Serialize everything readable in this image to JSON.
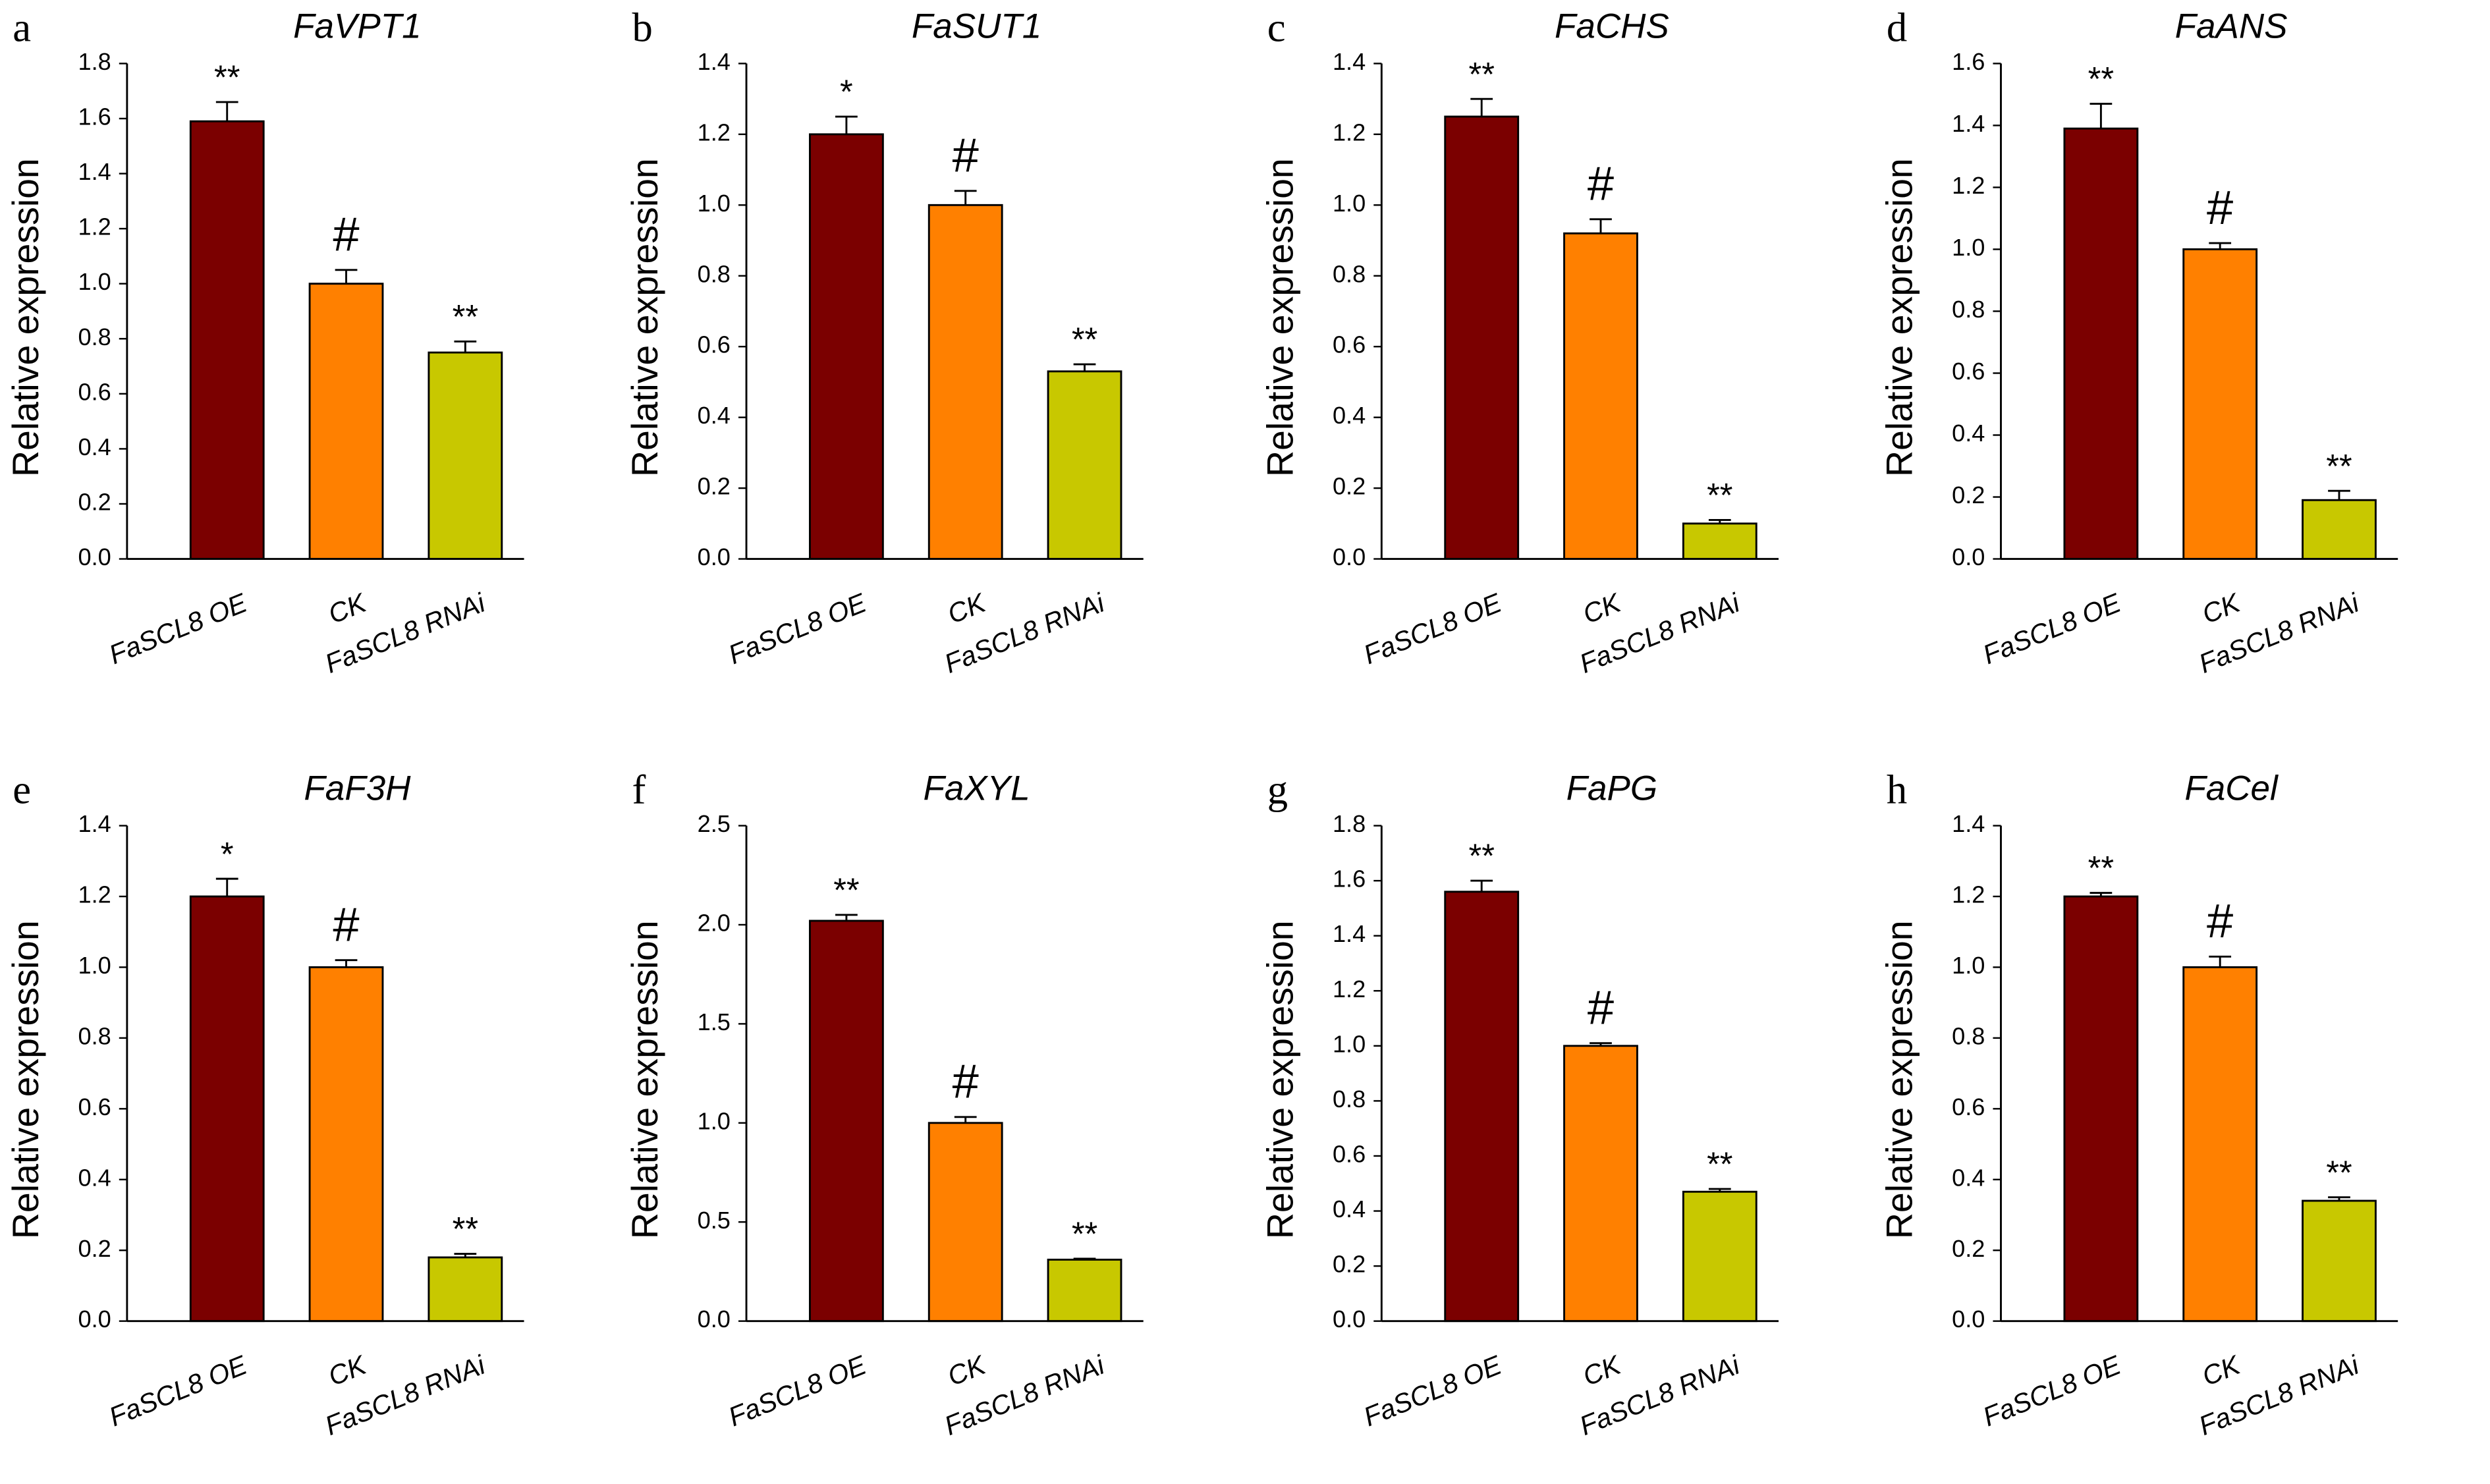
{
  "chart_data": [
    {
      "type": "bar",
      "panel": "a",
      "title": "FaVPT1",
      "ylabel": "Relative expression",
      "categories": [
        "FaSCL8 OE",
        "CK",
        "FaSCL8 RNAi"
      ],
      "values": [
        1.59,
        1.0,
        0.75
      ],
      "errors": [
        0.07,
        0.05,
        0.04
      ],
      "annotations": [
        "**",
        "#",
        "**"
      ],
      "colors": [
        "#7b0000",
        "#ff8000",
        "#c8c800"
      ],
      "ylim": [
        0,
        1.8
      ],
      "yticks": [
        {
          "value": 0,
          "label": "0.0"
        },
        {
          "value": 0.2,
          "label": "0.2"
        },
        {
          "value": 0.4,
          "label": "0.4"
        },
        {
          "value": 0.6,
          "label": "0.6"
        },
        {
          "value": 0.8,
          "label": "0.8"
        },
        {
          "value": 1.0,
          "label": "1.0"
        },
        {
          "value": 1.2,
          "label": "1.2"
        },
        {
          "value": 1.4,
          "label": "1.4"
        },
        {
          "value": 1.6,
          "label": "1.6"
        },
        {
          "value": 1.8,
          "label": "1.8"
        }
      ]
    },
    {
      "type": "bar",
      "panel": "b",
      "title": "FaSUT1",
      "ylabel": "Relative expression",
      "categories": [
        "FaSCL8 OE",
        "CK",
        "FaSCL8 RNAi"
      ],
      "values": [
        1.2,
        1.0,
        0.53
      ],
      "errors": [
        0.05,
        0.04,
        0.02
      ],
      "annotations": [
        "*",
        "#",
        "**"
      ],
      "colors": [
        "#7b0000",
        "#ff8000",
        "#c8c800"
      ],
      "ylim": [
        0,
        1.4
      ],
      "yticks": [
        {
          "value": 0,
          "label": "0.0"
        },
        {
          "value": 0.2,
          "label": "0.2"
        },
        {
          "value": 0.4,
          "label": "0.4"
        },
        {
          "value": 0.6,
          "label": "0.6"
        },
        {
          "value": 0.8,
          "label": "0.8"
        },
        {
          "value": 1.0,
          "label": "1.0"
        },
        {
          "value": 1.2,
          "label": "1.2"
        },
        {
          "value": 1.4,
          "label": "1.4"
        }
      ]
    },
    {
      "type": "bar",
      "panel": "c",
      "title": "FaCHS",
      "ylabel": "Relative expression",
      "categories": [
        "FaSCL8 OE",
        "CK",
        "FaSCL8 RNAi"
      ],
      "values": [
        1.25,
        0.92,
        0.1
      ],
      "errors": [
        0.05,
        0.04,
        0.01
      ],
      "annotations": [
        "**",
        "#",
        "**"
      ],
      "colors": [
        "#7b0000",
        "#ff8000",
        "#c8c800"
      ],
      "ylim": [
        0,
        1.4
      ],
      "yticks": [
        {
          "value": 0,
          "label": "0.0"
        },
        {
          "value": 0.2,
          "label": "0.2"
        },
        {
          "value": 0.4,
          "label": "0.4"
        },
        {
          "value": 0.6,
          "label": "0.6"
        },
        {
          "value": 0.8,
          "label": "0.8"
        },
        {
          "value": 1.0,
          "label": "1.0"
        },
        {
          "value": 1.2,
          "label": "1.2"
        },
        {
          "value": 1.4,
          "label": "1.4"
        }
      ]
    },
    {
      "type": "bar",
      "panel": "d",
      "title": "FaANS",
      "ylabel": "Relative expression",
      "categories": [
        "FaSCL8 OE",
        "CK",
        "FaSCL8 RNAi"
      ],
      "values": [
        1.39,
        1.0,
        0.19
      ],
      "errors": [
        0.08,
        0.02,
        0.03
      ],
      "annotations": [
        "**",
        "#",
        "**"
      ],
      "colors": [
        "#7b0000",
        "#ff8000",
        "#c8c800"
      ],
      "ylim": [
        0,
        1.6
      ],
      "yticks": [
        {
          "value": 0,
          "label": "0.0"
        },
        {
          "value": 0.2,
          "label": "0.2"
        },
        {
          "value": 0.4,
          "label": "0.4"
        },
        {
          "value": 0.6,
          "label": "0.6"
        },
        {
          "value": 0.8,
          "label": "0.8"
        },
        {
          "value": 1.0,
          "label": "1.0"
        },
        {
          "value": 1.2,
          "label": "1.2"
        },
        {
          "value": 1.4,
          "label": "1.4"
        },
        {
          "value": 1.6,
          "label": "1.6"
        }
      ]
    },
    {
      "type": "bar",
      "panel": "e",
      "title": "FaF3H",
      "ylabel": "Relative expression",
      "categories": [
        "FaSCL8 OE",
        "CK",
        "FaSCL8 RNAi"
      ],
      "values": [
        1.2,
        1.0,
        0.18
      ],
      "errors": [
        0.05,
        0.02,
        0.01
      ],
      "annotations": [
        "*",
        "#",
        "**"
      ],
      "colors": [
        "#7b0000",
        "#ff8000",
        "#c8c800"
      ],
      "ylim": [
        0,
        1.4
      ],
      "yticks": [
        {
          "value": 0,
          "label": "0.0"
        },
        {
          "value": 0.2,
          "label": "0.2"
        },
        {
          "value": 0.4,
          "label": "0.4"
        },
        {
          "value": 0.6,
          "label": "0.6"
        },
        {
          "value": 0.8,
          "label": "0.8"
        },
        {
          "value": 1.0,
          "label": "1.0"
        },
        {
          "value": 1.2,
          "label": "1.2"
        },
        {
          "value": 1.4,
          "label": "1.4"
        }
      ]
    },
    {
      "type": "bar",
      "panel": "f",
      "title": "FaXYL",
      "ylabel": "Relative expression",
      "categories": [
        "FaSCL8 OE",
        "CK",
        "FaSCL8 RNAi"
      ],
      "values": [
        2.02,
        1.0,
        0.31
      ],
      "errors": [
        0.03,
        0.03,
        0.005
      ],
      "annotations": [
        "**",
        "#",
        "**"
      ],
      "colors": [
        "#7b0000",
        "#ff8000",
        "#c8c800"
      ],
      "ylim": [
        0,
        2.5
      ],
      "yticks": [
        {
          "value": 0,
          "label": "0.0"
        },
        {
          "value": 0.5,
          "label": "0.5"
        },
        {
          "value": 1.0,
          "label": "1.0"
        },
        {
          "value": 1.5,
          "label": "1.5"
        },
        {
          "value": 2.0,
          "label": "2.0"
        },
        {
          "value": 2.5,
          "label": "2.5"
        }
      ]
    },
    {
      "type": "bar",
      "panel": "g",
      "title": "FaPG",
      "ylabel": "Relative expression",
      "categories": [
        "FaSCL8 OE",
        "CK",
        "FaSCL8 RNAi"
      ],
      "values": [
        1.56,
        1.0,
        0.47
      ],
      "errors": [
        0.04,
        0.01,
        0.01
      ],
      "annotations": [
        "**",
        "#",
        "**"
      ],
      "colors": [
        "#7b0000",
        "#ff8000",
        "#c8c800"
      ],
      "ylim": [
        0,
        1.8
      ],
      "yticks": [
        {
          "value": 0,
          "label": "0.0"
        },
        {
          "value": 0.2,
          "label": "0.2"
        },
        {
          "value": 0.4,
          "label": "0.4"
        },
        {
          "value": 0.6,
          "label": "0.6"
        },
        {
          "value": 0.8,
          "label": "0.8"
        },
        {
          "value": 1.0,
          "label": "1.0"
        },
        {
          "value": 1.2,
          "label": "1.2"
        },
        {
          "value": 1.4,
          "label": "1.4"
        },
        {
          "value": 1.6,
          "label": "1.6"
        },
        {
          "value": 1.8,
          "label": "1.8"
        }
      ]
    },
    {
      "type": "bar",
      "panel": "h",
      "title": "FaCel",
      "ylabel": "Relative expression",
      "categories": [
        "FaSCL8 OE",
        "CK",
        "FaSCL8 RNAi"
      ],
      "values": [
        1.2,
        1.0,
        0.34
      ],
      "errors": [
        0.01,
        0.03,
        0.01
      ],
      "annotations": [
        "**",
        "#",
        "**"
      ],
      "colors": [
        "#7b0000",
        "#ff8000",
        "#c8c800"
      ],
      "ylim": [
        0,
        1.4
      ],
      "yticks": [
        {
          "value": 0,
          "label": "0.0"
        },
        {
          "value": 0.2,
          "label": "0.2"
        },
        {
          "value": 0.4,
          "label": "0.4"
        },
        {
          "value": 0.6,
          "label": "0.6"
        },
        {
          "value": 0.8,
          "label": "0.8"
        },
        {
          "value": 1.0,
          "label": "1.0"
        },
        {
          "value": 1.2,
          "label": "1.2"
        },
        {
          "value": 1.4,
          "label": "1.4"
        }
      ]
    }
  ]
}
